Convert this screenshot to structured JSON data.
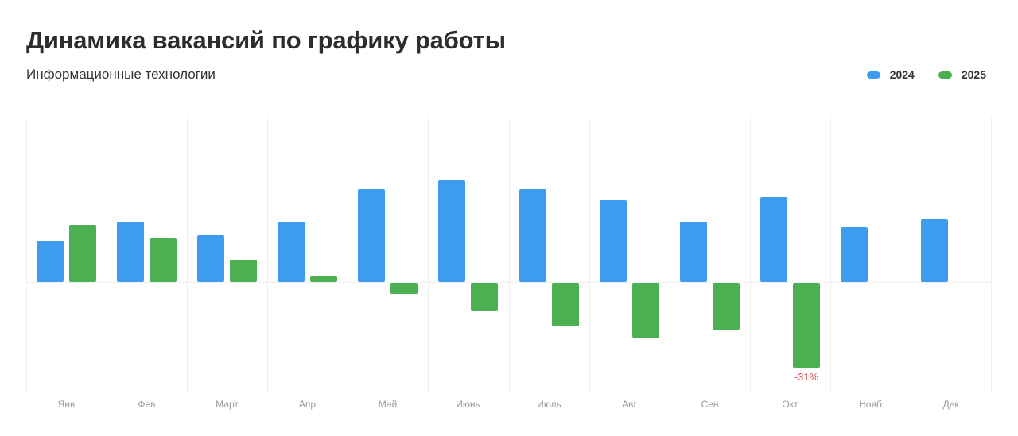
{
  "header": {
    "title": "Динамика вакансий по графику работы",
    "subtitle": "Информационные технологии"
  },
  "legend": [
    {
      "label": "2024",
      "color": "#3d9bf0"
    },
    {
      "label": "2025",
      "color": "#4caf50"
    }
  ],
  "colors": {
    "series_2024": "#3d9bf0",
    "series_2025": "#4caf50",
    "negative_label": "#d9534f",
    "gridline": "#f0f0f0",
    "axis_label": "#9a9a9a"
  },
  "annotations": [
    {
      "month_index": 9,
      "series": "2025",
      "text": "-31%"
    }
  ],
  "chart_data": {
    "type": "bar",
    "title": "Динамика вакансий по графику работы",
    "subtitle": "Информационные технологии",
    "xlabel": "",
    "ylabel": "",
    "unit": "%",
    "categories": [
      "Янв",
      "Фев",
      "Март",
      "Апр",
      "Май",
      "Июнь",
      "Июль",
      "Авг",
      "Сен",
      "Окт",
      "Нояб",
      "Дек"
    ],
    "series": [
      {
        "name": "2024",
        "color": "#3d9bf0",
        "values": [
          15,
          22,
          17,
          22,
          34,
          37,
          34,
          30,
          22,
          31,
          20,
          23
        ]
      },
      {
        "name": "2025",
        "color": "#4caf50",
        "values": [
          21,
          16,
          8,
          2,
          -4,
          -10,
          -16,
          -20,
          -17,
          -31,
          null,
          null
        ]
      }
    ],
    "ylim": [
      -40,
      60
    ],
    "grid": {
      "vertical": true,
      "horizontal": false,
      "zero_line": true
    },
    "legend_position": "top-right",
    "annotations": [
      {
        "category": "Окт",
        "series": "2025",
        "text": "-31%"
      }
    ]
  }
}
